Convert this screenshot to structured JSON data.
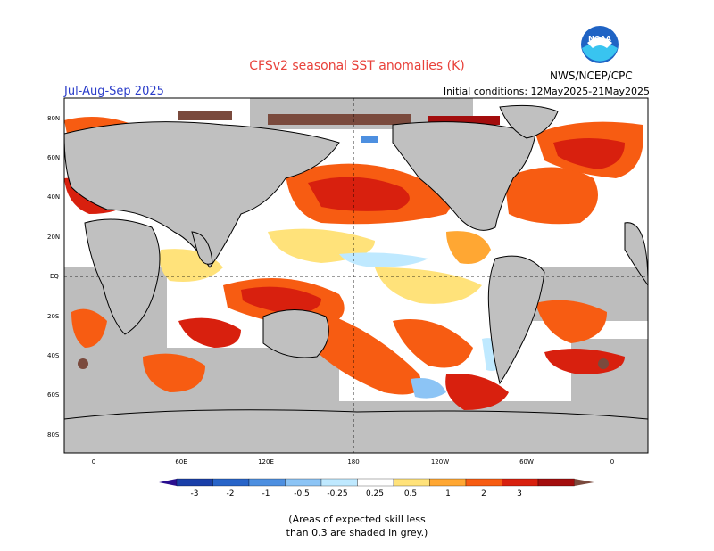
{
  "title": "CFSv2 seasonal SST anomalies (K)",
  "season": "Jul-Aug-Sep 2025",
  "initial_conditions": "Initial conditions: 12May2025-21May2025",
  "organization": "NWS/NCEP/CPC",
  "logo_text": "NOAA",
  "colors": {
    "land": "#c0c0c0",
    "grey_skill": "#bdbdbd",
    "ocean_neutral": "#ffffff",
    "pos_025": "#ffe27a",
    "pos_05": "#ffa733",
    "pos_1": "#f75c12",
    "pos_2": "#d8200e",
    "pos_3": "#a30d0d",
    "pos_gt3": "#7a4a3d",
    "neg_025": "#bfe9ff",
    "neg_05": "#8cc4f5",
    "neg_1": "#4d8fe0",
    "neg_2": "#2864c8",
    "neg_3": "#1a3fa8"
  },
  "lat_labels": [
    "80N",
    "60N",
    "40N",
    "20N",
    "EQ",
    "20S",
    "40S",
    "60S",
    "80S"
  ],
  "lon_labels": [
    "0",
    "60E",
    "120E",
    "180",
    "120W",
    "60W",
    "0"
  ],
  "colorbar": {
    "labels": [
      "-3",
      "-2",
      "-1",
      "-0.5",
      "-0.25",
      "0.25",
      "0.5",
      "1",
      "2",
      "3"
    ],
    "colors": [
      "#2a0f8f",
      "#1a3fa8",
      "#2864c8",
      "#4d8fe0",
      "#8cc4f5",
      "#bfe9ff",
      "#ffffff",
      "#ffe27a",
      "#ffa733",
      "#f75c12",
      "#d8200e",
      "#a30d0d",
      "#7a4a3d"
    ]
  },
  "skill_note": [
    "(Areas of expected skill less",
    "than 0.3 are shaded in grey.)"
  ]
}
